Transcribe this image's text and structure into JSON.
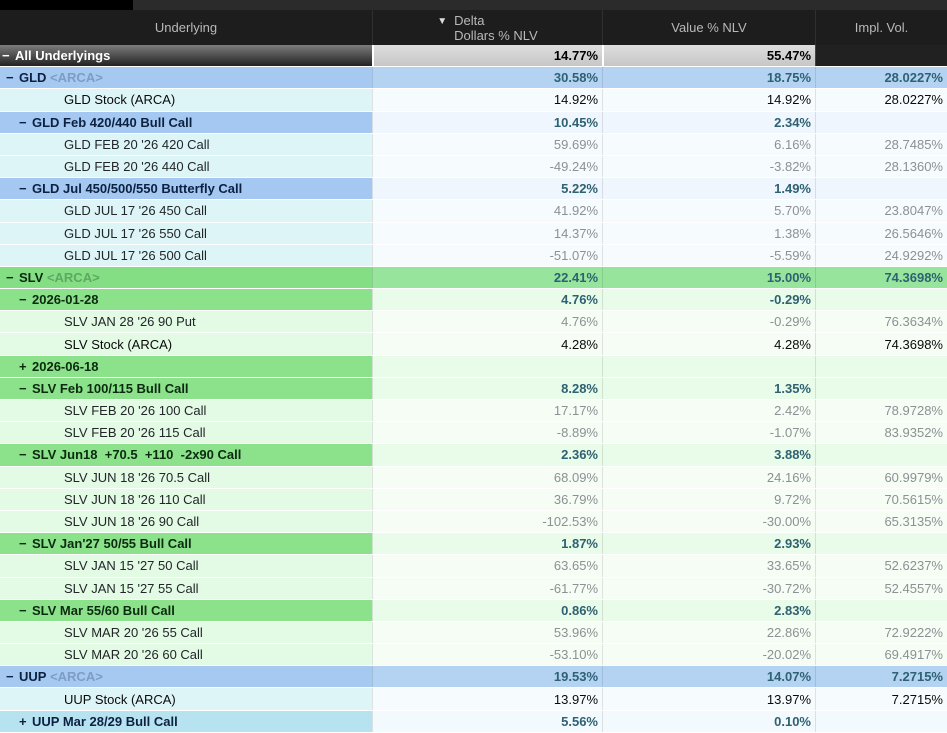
{
  "header": {
    "columns": [
      {
        "label": "Underlying"
      },
      {
        "label_line1": "Delta",
        "label_line2": "Dollars % NLV",
        "sort_icon": "▼"
      },
      {
        "label": "Value % NLV"
      },
      {
        "label": "Impl. Vol."
      }
    ]
  },
  "colors": {
    "header_bg": "#1d1d1d",
    "header_text": "#b9b9b9",
    "strip_bg": "#2b2b2b",
    "tab_black": "#000000",
    "total_label_top": "#7c7c7c",
    "total_label_bottom": "#222222",
    "total_cell_top": "#dedede",
    "total_cell_bottom": "#c6c6c6",
    "total_ivol_bg": "#212121",
    "blue_group_bg": "#a6c9f1",
    "blue_group_cell_bg": "#b4d3f3",
    "blue_sub_bg": "#a4c8f2",
    "blue_sub_cell_bg": "#eff6fd",
    "cyan_sub_bg": "#b7e3f1",
    "cyan_sub_cell_bg": "#f2fafd",
    "green_group_bg": "#84de84",
    "green_group_cell_bg": "#97e59c",
    "green_sub_bg": "#8ce28b",
    "green_sub_cell_bg": "#e9fbe9",
    "leaf_cyan_bg": "#def5f8",
    "leaf_cyan_cell_bg": "#f6fcfd",
    "leaf_green_bg": "#e3fae5",
    "leaf_green_cell_bg": "#f5fdf5",
    "navy_text": "#0c2140",
    "green_dark_text": "#0b2a10",
    "group_value_text": "#2e6172",
    "suffix_blue": "#7e9cc4",
    "suffix_green": "#5fa763",
    "leaf_label_text": "#222629",
    "leaf_value_text": "#8b9194",
    "stock_text": "#0a0a0a"
  },
  "rows": [
    {
      "theme": "total",
      "level": 0,
      "exp": "−",
      "label": "All Underlyings",
      "delta": "14.77%",
      "value": "55.47%",
      "ivol": ""
    },
    {
      "theme": "blue1",
      "level": 1,
      "exp": "−",
      "label": "GLD",
      "suffix": "<ARCA>",
      "delta": "30.58%",
      "value": "18.75%",
      "ivol": "28.0227%"
    },
    {
      "theme": "leafc",
      "level": 3,
      "strong": true,
      "label": "GLD Stock (ARCA)",
      "delta": "14.92%",
      "value": "14.92%",
      "ivol": "28.0227%"
    },
    {
      "theme": "blue2",
      "level": 2,
      "exp": "−",
      "label": "GLD Feb 420/440 Bull Call",
      "delta": "10.45%",
      "value": "2.34%",
      "ivol": ""
    },
    {
      "theme": "leafc",
      "level": 3,
      "label": "GLD FEB 20 '26 420 Call",
      "delta": "59.69%",
      "value": "6.16%",
      "ivol": "28.7485%"
    },
    {
      "theme": "leafc",
      "level": 3,
      "label": "GLD FEB 20 '26 440 Call",
      "delta": "-49.24%",
      "value": "-3.82%",
      "ivol": "28.1360%"
    },
    {
      "theme": "blue2",
      "level": 2,
      "exp": "−",
      "label": "GLD Jul 450/500/550 Butterfly Call",
      "delta": "5.22%",
      "value": "1.49%",
      "ivol": ""
    },
    {
      "theme": "leafc",
      "level": 3,
      "label": "GLD JUL 17 '26 450 Call",
      "delta": "41.92%",
      "value": "5.70%",
      "ivol": "23.8047%"
    },
    {
      "theme": "leafc",
      "level": 3,
      "label": "GLD JUL 17 '26 550 Call",
      "delta": "14.37%",
      "value": "1.38%",
      "ivol": "26.5646%"
    },
    {
      "theme": "leafc",
      "level": 3,
      "label": "GLD JUL 17 '26 500 Call",
      "delta": "-51.07%",
      "value": "-5.59%",
      "ivol": "24.9292%"
    },
    {
      "theme": "green1",
      "level": 1,
      "exp": "−",
      "label": "SLV",
      "suffix": "<ARCA>",
      "delta": "22.41%",
      "value": "15.00%",
      "ivol": "74.3698%"
    },
    {
      "theme": "green2",
      "level": 2,
      "exp": "−",
      "label": "2026-01-28",
      "delta": "4.76%",
      "value": "-0.29%",
      "ivol": ""
    },
    {
      "theme": "leafg",
      "level": 3,
      "label": "SLV JAN 28 '26 90 Put",
      "delta": "4.76%",
      "value": "-0.29%",
      "ivol": "76.3634%"
    },
    {
      "theme": "leafg",
      "level": 3,
      "strong": true,
      "label": "SLV Stock (ARCA)",
      "delta": "4.28%",
      "value": "4.28%",
      "ivol": "74.3698%"
    },
    {
      "theme": "green2",
      "level": 2,
      "exp": "+",
      "label": "2026-06-18",
      "delta": "",
      "value": "",
      "ivol": ""
    },
    {
      "theme": "green2",
      "level": 2,
      "exp": "−",
      "label": "SLV Feb 100/115 Bull Call",
      "delta": "8.28%",
      "value": "1.35%",
      "ivol": ""
    },
    {
      "theme": "leafg",
      "level": 3,
      "label": "SLV FEB 20 '26 100 Call",
      "delta": "17.17%",
      "value": "2.42%",
      "ivol": "78.9728%"
    },
    {
      "theme": "leafg",
      "level": 3,
      "label": "SLV FEB 20 '26 115 Call",
      "delta": "-8.89%",
      "value": "-1.07%",
      "ivol": "83.9352%"
    },
    {
      "theme": "green2",
      "level": 2,
      "exp": "−",
      "label": "SLV Jun18  +70.5  +110  -2x90 Call",
      "delta": "2.36%",
      "value": "3.88%",
      "ivol": ""
    },
    {
      "theme": "leafg",
      "level": 3,
      "label": "SLV JUN 18 '26 70.5 Call",
      "delta": "68.09%",
      "value": "24.16%",
      "ivol": "60.9979%"
    },
    {
      "theme": "leafg",
      "level": 3,
      "label": "SLV JUN 18 '26 110 Call",
      "delta": "36.79%",
      "value": "9.72%",
      "ivol": "70.5615%"
    },
    {
      "theme": "leafg",
      "level": 3,
      "label": "SLV JUN 18 '26 90 Call",
      "delta": "-102.53%",
      "value": "-30.00%",
      "ivol": "65.3135%"
    },
    {
      "theme": "green2",
      "level": 2,
      "exp": "−",
      "label": "SLV Jan'27 50/55 Bull Call",
      "delta": "1.87%",
      "value": "2.93%",
      "ivol": ""
    },
    {
      "theme": "leafg",
      "level": 3,
      "label": "SLV JAN 15 '27 50 Call",
      "delta": "63.65%",
      "value": "33.65%",
      "ivol": "52.6237%"
    },
    {
      "theme": "leafg",
      "level": 3,
      "label": "SLV JAN 15 '27 55 Call",
      "delta": "-61.77%",
      "value": "-30.72%",
      "ivol": "52.4557%"
    },
    {
      "theme": "green2",
      "level": 2,
      "exp": "−",
      "label": "SLV Mar 55/60 Bull Call",
      "delta": "0.86%",
      "value": "2.83%",
      "ivol": ""
    },
    {
      "theme": "leafg",
      "level": 3,
      "label": "SLV MAR 20 '26 55 Call",
      "delta": "53.96%",
      "value": "22.86%",
      "ivol": "72.9222%"
    },
    {
      "theme": "leafg",
      "level": 3,
      "label": "SLV MAR 20 '26 60 Call",
      "delta": "-53.10%",
      "value": "-20.02%",
      "ivol": "69.4917%"
    },
    {
      "theme": "blue1",
      "level": 1,
      "exp": "−",
      "label": "UUP",
      "suffix": "<ARCA>",
      "delta": "19.53%",
      "value": "14.07%",
      "ivol": "7.2715%"
    },
    {
      "theme": "leafc",
      "level": 3,
      "strong": true,
      "label": "UUP Stock (ARCA)",
      "delta": "13.97%",
      "value": "13.97%",
      "ivol": "7.2715%"
    },
    {
      "theme": "cyan2",
      "level": 2,
      "exp": "+",
      "label": "UUP Mar 28/29 Bull Call",
      "delta": "5.56%",
      "value": "0.10%",
      "ivol": ""
    }
  ]
}
